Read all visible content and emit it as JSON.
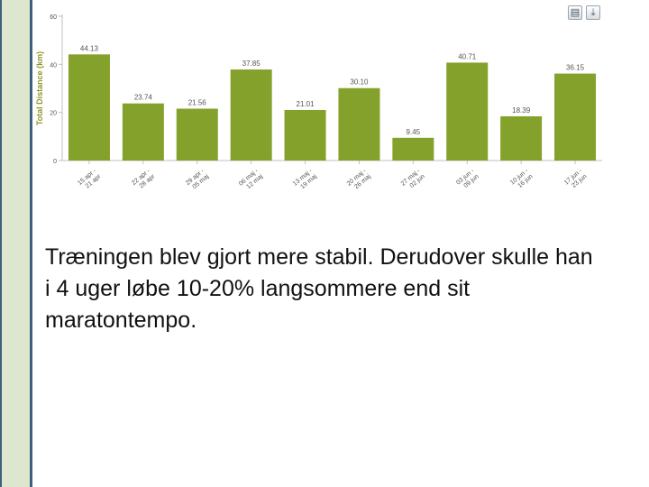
{
  "chart_data": {
    "type": "bar",
    "categories": [
      "15 apr - 21 apr",
      "22 apr - 28 apr",
      "29 apr - 05 maj",
      "06 maj - 12 maj",
      "13 maj - 19 maj",
      "20 maj - 26 maj",
      "27 maj - 02 jun",
      "03 jun - 09 jun",
      "10 jun - 16 jun",
      "17 jun - 23 jun"
    ],
    "values": [
      44.13,
      23.74,
      21.56,
      37.85,
      21.01,
      30.1,
      9.45,
      40.71,
      18.39,
      36.15
    ],
    "value_labels": [
      "44.13",
      "23.74",
      "21.56",
      "37.85",
      "21.01",
      "30.10",
      "9.45",
      "40.71",
      "18.39",
      "36.15"
    ],
    "tick_labels": [
      "0",
      "20",
      "40",
      "60"
    ],
    "ylabel": "Total Distance (km)",
    "ylim": [
      0,
      60
    ],
    "grid": false,
    "colors": {
      "bar": "#83a12b",
      "axis": "#c0c0c0",
      "label": "#555555",
      "ylabel": "#8a9a2a"
    }
  },
  "toolbar": {
    "print_icon": "printer-icon",
    "download_icon": "download-icon",
    "print_glyph": "▤",
    "download_glyph": "⤓"
  },
  "caption": "Træningen blev gjort mere stabil. Derudover skulle han i 4 uger løbe 10-20% langsommere end sit maratontempo."
}
